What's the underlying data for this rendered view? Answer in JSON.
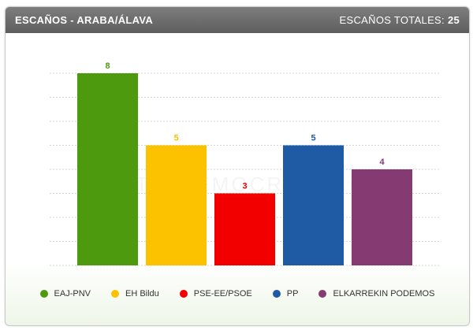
{
  "header": {
    "title": "ESCAÑOS - ARABA/ÁLAVA",
    "total_label": "ESCAÑOS TOTALES:",
    "total_value": "25"
  },
  "watermark": "PORTALDEMOCRACIA.COM",
  "chart_data": {
    "type": "bar",
    "title": "ESCAÑOS - ARABA/ÁLAVA",
    "xlabel": "",
    "ylabel": "",
    "categories": [
      "EAJ-PNV",
      "EH Bildu",
      "PSE-EE/PSOE",
      "PP",
      "ELKARREKIN PODEMOS"
    ],
    "values": [
      8,
      5,
      3,
      5,
      4
    ],
    "colors": [
      "#4e9a0f",
      "#fcc200",
      "#f20000",
      "#1f5ba4",
      "#853a71"
    ],
    "ylim": [
      0,
      8
    ],
    "grid": true,
    "legend": "bottom",
    "data_labels": true
  }
}
